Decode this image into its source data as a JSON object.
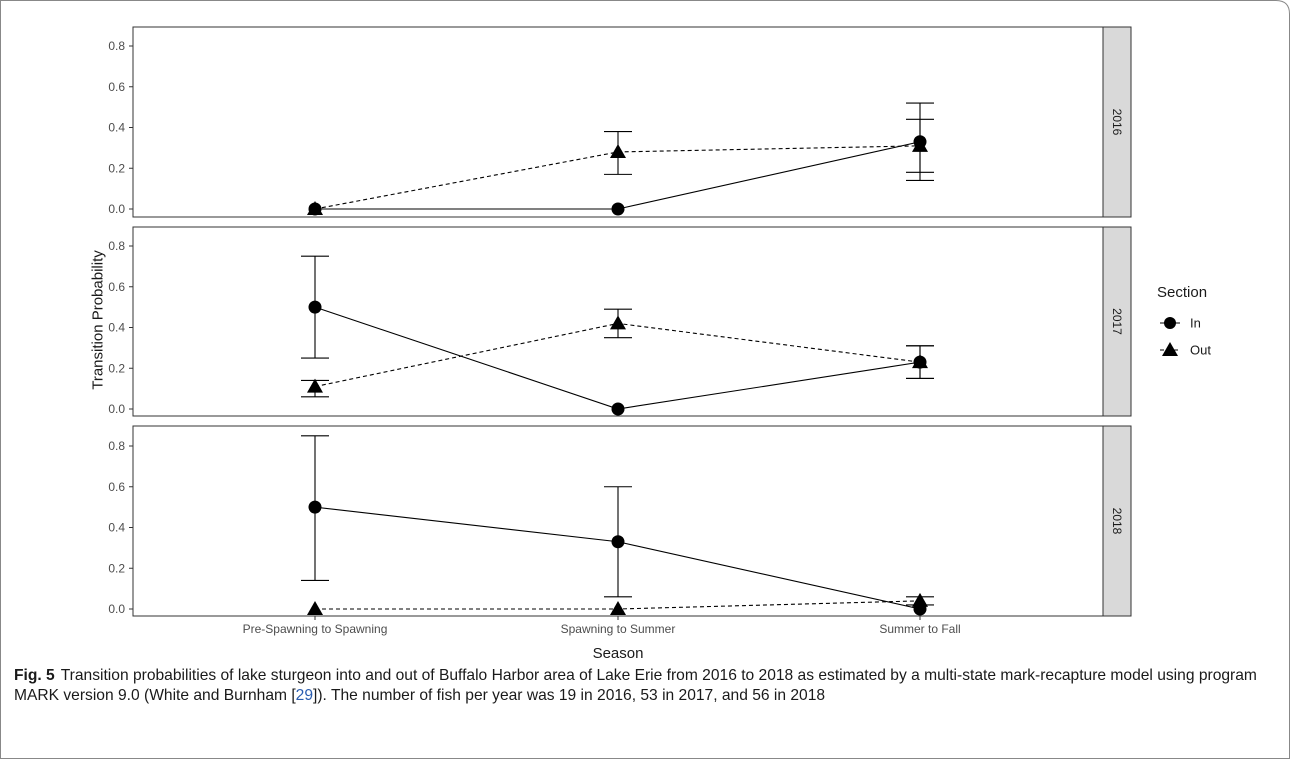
{
  "chart_data": {
    "type": "line",
    "xlabel": "Season",
    "ylabel": "Transition Probability",
    "categories": [
      "Pre-Spawning to Spawning",
      "Spawning to Summer",
      "Summer to Fall"
    ],
    "ylim": [
      0,
      0.8
    ],
    "yticks": [
      "0.0",
      "0.2",
      "0.4",
      "0.6",
      "0.8"
    ],
    "grid": false,
    "legend": {
      "title": "Section",
      "position": "right",
      "entries": [
        {
          "name": "In",
          "marker": "circle",
          "line": "solid"
        },
        {
          "name": "Out",
          "marker": "triangle",
          "line": "dashed"
        }
      ]
    },
    "panels": [
      {
        "strip": "2016",
        "series": [
          {
            "name": "In",
            "values": [
              0.0,
              0.0,
              0.33
            ],
            "lower": [
              null,
              null,
              0.18
            ],
            "upper": [
              null,
              null,
              0.52
            ]
          },
          {
            "name": "Out",
            "values": [
              0.0,
              0.28,
              0.31
            ],
            "lower": [
              null,
              0.17,
              0.14
            ],
            "upper": [
              null,
              0.38,
              0.44
            ]
          }
        ]
      },
      {
        "strip": "2017",
        "series": [
          {
            "name": "In",
            "values": [
              0.5,
              0.0,
              0.23
            ],
            "lower": [
              0.25,
              null,
              0.15
            ],
            "upper": [
              0.75,
              null,
              0.31
            ]
          },
          {
            "name": "Out",
            "values": [
              0.11,
              0.42,
              0.23
            ],
            "lower": [
              0.06,
              0.35,
              0.15
            ],
            "upper": [
              0.14,
              0.49,
              0.31
            ]
          }
        ]
      },
      {
        "strip": "2018",
        "series": [
          {
            "name": "In",
            "values": [
              0.5,
              0.33,
              0.0
            ],
            "lower": [
              0.14,
              0.06,
              null
            ],
            "upper": [
              0.85,
              0.6,
              null
            ]
          },
          {
            "name": "Out",
            "values": [
              0.0,
              0.0,
              0.04
            ],
            "lower": [
              null,
              null,
              0.02
            ],
            "upper": [
              null,
              null,
              0.06
            ]
          }
        ]
      }
    ]
  },
  "caption": {
    "label": "Fig. 5",
    "text_before_ref": "Transition probabilities of lake sturgeon into and out of Buffalo Harbor area of Lake Erie from 2016 to 2018 as estimated by a multi-state mark-recapture model using program MARK version 9.0 (White and Burnham [",
    "ref": "29",
    "text_after_ref": "]). The number of fish per year was 19 in 2016, 53 in 2017, and 56 in 2018"
  }
}
